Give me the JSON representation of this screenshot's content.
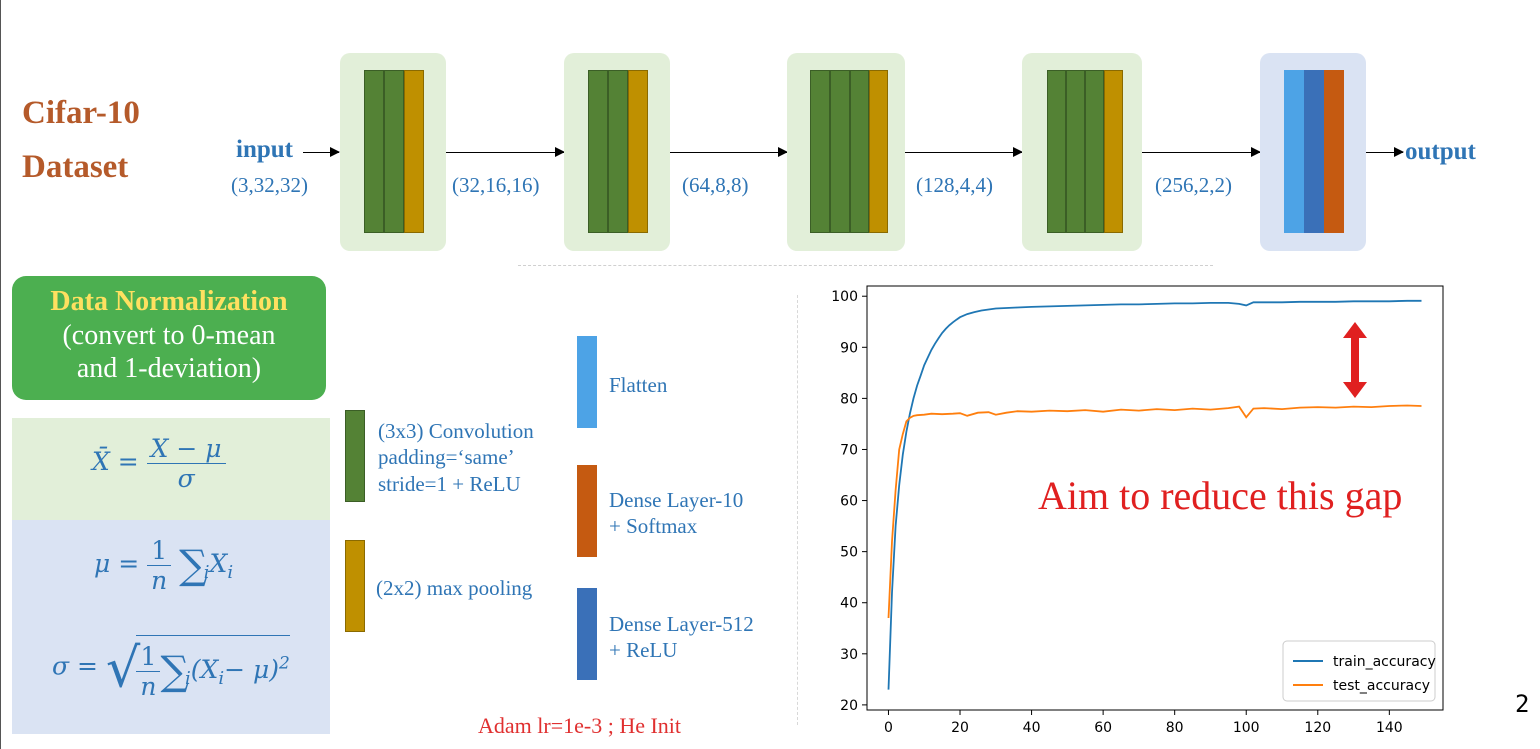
{
  "dataset_title": [
    "Cifar-10",
    "Dataset"
  ],
  "pipeline": {
    "input_label": "input",
    "input_shape": "(3,32,32)",
    "output_label": "output",
    "shapes": [
      "(32,16,16)",
      "(64,8,8)",
      "(128,4,4)",
      "(256,2,2)"
    ]
  },
  "normalization": {
    "title": "Data Normalization",
    "subtitle": [
      "(convert to 0-mean",
      "and 1-deviation)"
    ]
  },
  "formulas": {
    "xbar": {
      "lhs": "X̄ =",
      "num": "X − μ",
      "den": "σ"
    },
    "mu": {
      "lhs": "μ =",
      "num": "1",
      "den": "n",
      "sum": "∑",
      "sub": "i",
      "term": "X",
      "term_sub": "i"
    },
    "sigma": {
      "lhs": "σ =",
      "num": "1",
      "den": "n",
      "sum": "∑",
      "sub": "i",
      "term": "(X",
      "term_sub": "i",
      "tail": "− μ)",
      "sup": "2"
    }
  },
  "legend": {
    "conv": [
      "(3x3) Convolution",
      "padding=‘same’",
      "stride=1 + ReLU"
    ],
    "pool": [
      "(2x2) max pooling"
    ],
    "flatten": [
      "Flatten"
    ],
    "dense10": [
      "Dense Layer-10",
      "+ Softmax"
    ],
    "dense512": [
      "Dense Layer-512",
      "+ ReLU"
    ]
  },
  "optimizer_note": "Adam lr=1e-3 ; He Init",
  "annotation": "Aim to reduce this gap",
  "page_number": "2",
  "colors": {
    "conv": "#548235",
    "pool": "#bf9000",
    "flatten": "#4da3e6",
    "dense512": "#3a70b8",
    "dense10": "#c55a11",
    "train": "#1f77b4",
    "test": "#ff7f0e",
    "gap_arrow": "#e02020"
  },
  "chart_data": {
    "type": "line",
    "title": "",
    "xlabel": "",
    "ylabel": "",
    "xlim": [
      -6,
      155
    ],
    "ylim": [
      19,
      102
    ],
    "xticks": [
      0,
      20,
      40,
      60,
      80,
      100,
      120,
      140
    ],
    "yticks": [
      20,
      30,
      40,
      50,
      60,
      70,
      80,
      90,
      100
    ],
    "grid": false,
    "legend_position": "lower-right",
    "series": [
      {
        "name": "train_accuracy",
        "x": [
          0,
          1,
          2,
          3,
          4,
          5,
          6,
          7,
          8,
          9,
          10,
          11,
          12,
          13,
          14,
          15,
          16,
          17,
          18,
          19,
          20,
          22,
          24,
          26,
          28,
          30,
          33,
          36,
          40,
          45,
          50,
          55,
          60,
          65,
          70,
          75,
          80,
          85,
          90,
          95,
          98,
          100,
          102,
          105,
          110,
          115,
          120,
          125,
          130,
          135,
          140,
          145,
          149
        ],
        "y": [
          23,
          42,
          55,
          63,
          69,
          73.5,
          77,
          80,
          82.5,
          84.5,
          86.5,
          88,
          89.5,
          90.7,
          91.8,
          92.8,
          93.6,
          94.3,
          94.9,
          95.4,
          95.9,
          96.5,
          96.9,
          97.2,
          97.4,
          97.6,
          97.7,
          97.8,
          97.9,
          98,
          98.1,
          98.2,
          98.3,
          98.4,
          98.4,
          98.5,
          98.6,
          98.6,
          98.7,
          98.7,
          98.5,
          98.2,
          98.8,
          98.8,
          98.8,
          98.9,
          98.9,
          98.9,
          99,
          99,
          99,
          99.1,
          99.1
        ]
      },
      {
        "name": "test_accuracy",
        "x": [
          0,
          1,
          2,
          3,
          4,
          5,
          6,
          7,
          8,
          10,
          12,
          15,
          18,
          20,
          22,
          25,
          28,
          30,
          33,
          36,
          40,
          45,
          50,
          55,
          60,
          65,
          70,
          75,
          80,
          85,
          90,
          95,
          98,
          100,
          102,
          105,
          110,
          115,
          120,
          125,
          130,
          135,
          140,
          145,
          149
        ],
        "y": [
          37,
          52,
          62,
          70,
          73,
          75.5,
          76.2,
          76.6,
          76.7,
          76.8,
          77,
          76.9,
          77,
          77.1,
          76.6,
          77.2,
          77.3,
          76.8,
          77.2,
          77.5,
          77.4,
          77.6,
          77.5,
          77.7,
          77.4,
          77.8,
          77.6,
          77.9,
          77.7,
          78,
          77.8,
          78.1,
          78.4,
          76.3,
          78,
          78.1,
          77.9,
          78.2,
          78.3,
          78.2,
          78.4,
          78.3,
          78.5,
          78.6,
          78.5
        ]
      }
    ]
  }
}
